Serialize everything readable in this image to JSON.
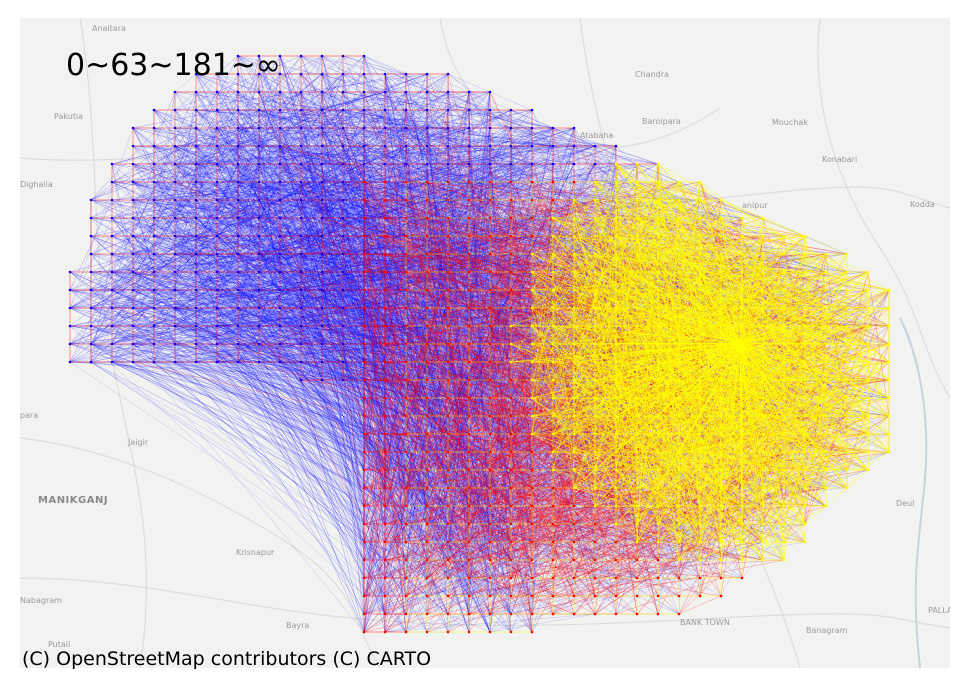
{
  "legend_title": "0~63~181~∞",
  "attribution": "(C) OpenStreetMap contributors (C) CARTO",
  "places": [
    "Anaitara",
    "Chandra",
    "Pakutia",
    "Baroipara",
    "Mouchak",
    "Atabaha",
    "Konabari",
    "Dighalia",
    "Kodda",
    "Jaigir",
    "MANIKGANJ",
    "Deul",
    "Krisnapur",
    "Nabagram",
    "Bayra",
    "BANK TOWN",
    "Banagram",
    "PALLA",
    "Putail",
    "anipur",
    "para"
  ],
  "colors": {
    "far": "#0000ff",
    "mid": "#ff0000",
    "near": "#ffff00",
    "land": "#f2f2f0",
    "road": "#dcdcdc"
  },
  "map": {
    "type": "od-flow-network",
    "classes": [
      "0~63",
      "63~181",
      "181~∞"
    ]
  }
}
